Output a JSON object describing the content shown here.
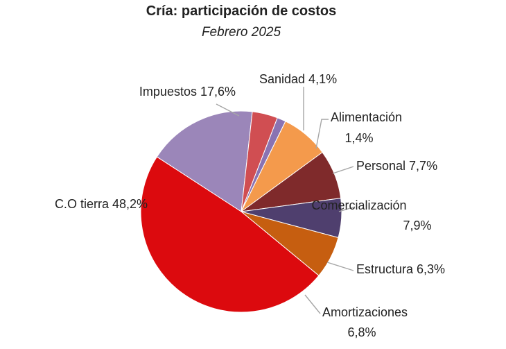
{
  "chart_data": {
    "type": "pie",
    "title": "Cría: participación de costos",
    "subtitle": "Febrero 2025",
    "slices": [
      {
        "name": "Impuestos",
        "value": 17.6,
        "label_name": "Impuestos",
        "label_value": "17,6%",
        "color": "#9b86b9"
      },
      {
        "name": "Sanidad",
        "value": 4.1,
        "label_name": "Sanidad",
        "label_value": "4,1%",
        "color": "#d04e52"
      },
      {
        "name": "Alimentación",
        "value": 1.4,
        "label_name": "Alimentación",
        "label_value": "1,4%",
        "color": "#8a73b2"
      },
      {
        "name": "Personal",
        "value": 7.7,
        "label_name": "Personal",
        "label_value": "7,7%",
        "color": "#f49a4c"
      },
      {
        "name": "Comercialización",
        "value": 7.9,
        "label_name": "Comercialización",
        "label_value": "7,9%",
        "color": "#7f2a2b"
      },
      {
        "name": "Estructura",
        "value": 6.3,
        "label_name": "Estructura",
        "label_value": "6,3%",
        "color": "#4f3f6e"
      },
      {
        "name": "Amortizaciones",
        "value": 6.8,
        "label_name": "Amortizaciones",
        "label_value": "6,8%",
        "color": "#c65e10"
      },
      {
        "name": "C.O tierra",
        "value": 48.2,
        "label_name": "C.O tierra",
        "label_value": "48,2%",
        "color": "#dc0a0e"
      }
    ]
  }
}
